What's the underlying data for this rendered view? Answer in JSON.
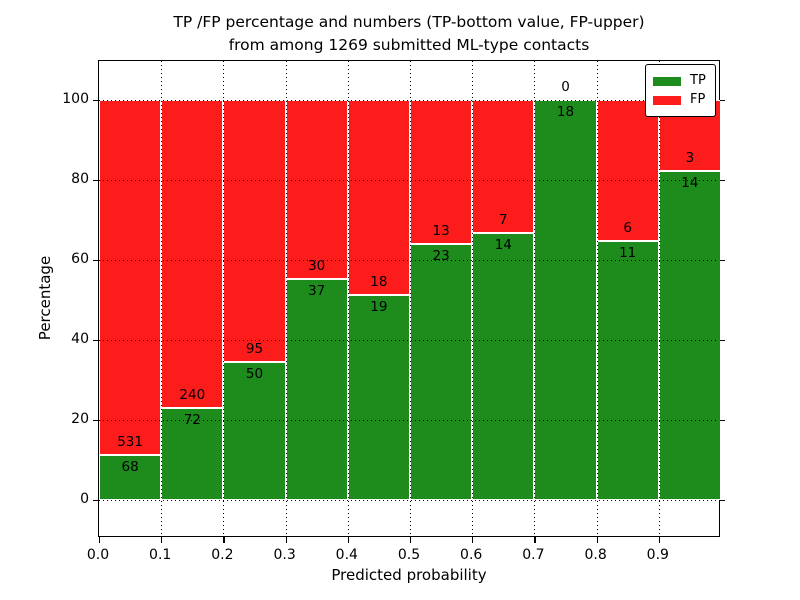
{
  "title_line1": "TP /FP percentage and numbers (TP-bottom value, FP-upper)",
  "title_line2": "from among 1269 submitted ML-type contacts",
  "axes": {
    "ylabel": "Percentage",
    "xlabel": "Predicted probability"
  },
  "legend": {
    "items": [
      {
        "label": "TP",
        "color": "#1d8c1d"
      },
      {
        "label": "FP",
        "color": "#fc1c1c"
      }
    ]
  },
  "colors": {
    "tp_green": "#1d8c1d",
    "fp_red": "#fc1c1c",
    "grid": "#000000",
    "background": "#ffffff"
  },
  "chart_data": {
    "type": "bar",
    "stacked": true,
    "normalized": "percent",
    "title": "TP /FP percentage and numbers (TP-bottom value, FP-upper) from among 1269 submitted ML-type contacts",
    "total_submitted": 1269,
    "xlabel": "Predicted probability",
    "ylabel": "Percentage",
    "x_bin_starts": [
      0.0,
      0.1,
      0.2,
      0.3,
      0.4,
      0.5,
      0.6,
      0.7,
      0.8,
      0.9
    ],
    "x_bin_width": 0.1,
    "x_tick_labels": [
      "0.0",
      "0.1",
      "0.2",
      "0.3",
      "0.4",
      "0.5",
      "0.6",
      "0.7",
      "0.8",
      "0.9"
    ],
    "y_ticks": [
      0,
      20,
      40,
      60,
      80,
      100
    ],
    "xlim": [
      0.0,
      1.0
    ],
    "ylim": [
      -9.5,
      109.75
    ],
    "grid": true,
    "legend_position": "upper right",
    "series": [
      {
        "name": "TP",
        "color": "#1d8c1d",
        "counts": [
          68,
          72,
          50,
          37,
          19,
          23,
          14,
          18,
          11,
          14
        ]
      },
      {
        "name": "FP",
        "color": "#fc1c1c",
        "counts": [
          531,
          240,
          95,
          30,
          18,
          13,
          7,
          0,
          6,
          3
        ]
      }
    ],
    "tp_percent": [
      11.35,
      23.08,
      34.48,
      55.22,
      51.35,
      63.89,
      66.67,
      100.0,
      64.71,
      82.35
    ]
  }
}
